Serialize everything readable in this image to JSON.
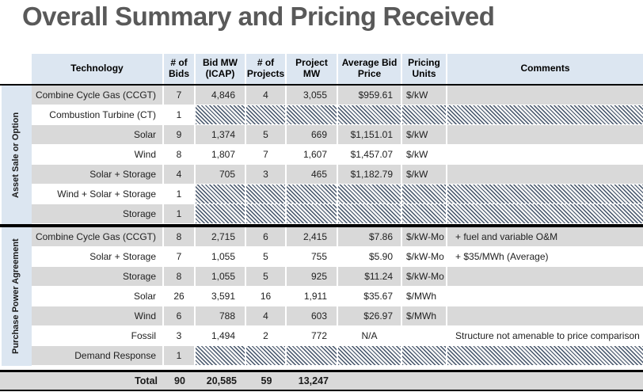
{
  "page": {
    "title": "Overall Summary and Pricing Received"
  },
  "colors": {
    "header_bg": "#dce6f1",
    "section_label_bg": "#dce6f1",
    "row_alt_bg": "#d9d9d9",
    "total_bg": "#d9d9d9",
    "hatch_stripe": "#44546a",
    "title_text": "#595959"
  },
  "table": {
    "columns": [
      "Technology",
      "# of Bids",
      "Bid MW (ICAP)",
      "# of Projects",
      "Project MW",
      "Average Bid Price",
      "Pricing Units",
      "Comments"
    ],
    "sections": [
      {
        "label": "Asset Sale or Option",
        "rows": [
          {
            "technology": "Combine Cycle Gas (CCGT)",
            "bids": "7",
            "bid_mw": "4,846",
            "projects": "4",
            "project_mw": "3,055",
            "avg_price": "$959.61",
            "units": "$/kW",
            "comments": "",
            "redacted": false
          },
          {
            "technology": "Combustion Turbine (CT)",
            "bids": "1",
            "redacted": true
          },
          {
            "technology": "Solar",
            "bids": "9",
            "bid_mw": "1,374",
            "projects": "5",
            "project_mw": "669",
            "avg_price": "$1,151.01",
            "units": "$/kW",
            "comments": "",
            "redacted": false
          },
          {
            "technology": "Wind",
            "bids": "8",
            "bid_mw": "1,807",
            "projects": "7",
            "project_mw": "1,607",
            "avg_price": "$1,457.07",
            "units": "$/kW",
            "comments": "",
            "redacted": false
          },
          {
            "technology": "Solar + Storage",
            "bids": "4",
            "bid_mw": "705",
            "projects": "3",
            "project_mw": "465",
            "avg_price": "$1,182.79",
            "units": "$/kW",
            "comments": "",
            "redacted": false
          },
          {
            "technology": "Wind + Solar + Storage",
            "bids": "1",
            "redacted": true
          },
          {
            "technology": "Storage",
            "bids": "1",
            "redacted": true
          }
        ]
      },
      {
        "label": "Purchase Power Agreement",
        "rows": [
          {
            "technology": "Combine Cycle Gas (CCGT)",
            "bids": "8",
            "bid_mw": "2,715",
            "projects": "6",
            "project_mw": "2,415",
            "avg_price": "$7.86",
            "units": "$/kW-Mo",
            "comments": "+ fuel and variable O&M",
            "redacted": false
          },
          {
            "technology": "Solar + Storage",
            "bids": "7",
            "bid_mw": "1,055",
            "projects": "5",
            "project_mw": "755",
            "avg_price": "$5.90",
            "units": "$/kW-Mo",
            "comments": "+ $35/MWh (Average)",
            "redacted": false
          },
          {
            "technology": "Storage",
            "bids": "8",
            "bid_mw": "1,055",
            "projects": "5",
            "project_mw": "925",
            "avg_price": "$11.24",
            "units": "$/kW-Mo",
            "comments": "",
            "redacted": false
          },
          {
            "technology": "Solar",
            "bids": "26",
            "bid_mw": "3,591",
            "projects": "16",
            "project_mw": "1,911",
            "avg_price": "$35.67",
            "units": "$/MWh",
            "comments": "",
            "redacted": false
          },
          {
            "technology": "Wind",
            "bids": "6",
            "bid_mw": "788",
            "projects": "4",
            "project_mw": "603",
            "avg_price": "$26.97",
            "units": "$/MWh",
            "comments": "",
            "redacted": false
          },
          {
            "technology": "Fossil",
            "bids": "3",
            "bid_mw": "1,494",
            "projects": "2",
            "project_mw": "772",
            "avg_price": "N/A",
            "units": "",
            "comments": "Structure not amenable to price comparison",
            "redacted": false
          },
          {
            "technology": "Demand Response",
            "bids": "1",
            "redacted": true
          }
        ]
      }
    ],
    "total": {
      "label": "Total",
      "bids": "90",
      "bid_mw": "20,585",
      "projects": "59",
      "project_mw": "13,247"
    }
  }
}
